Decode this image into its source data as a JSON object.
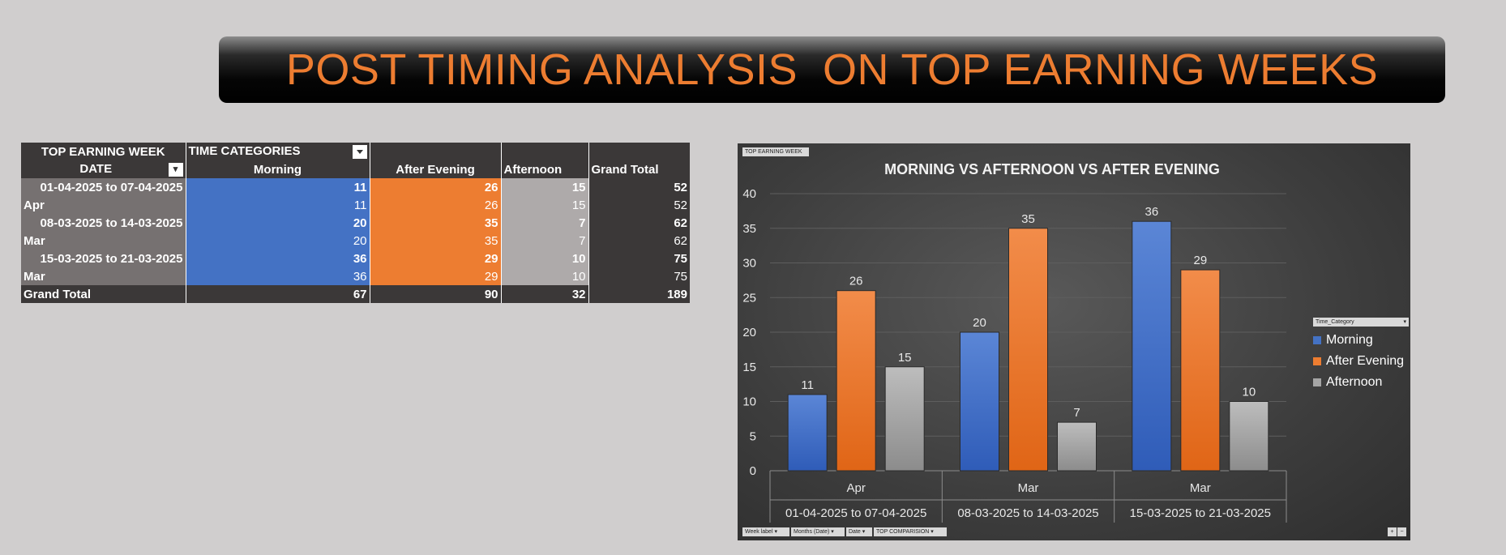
{
  "banner": {
    "title": "POST TIMING ANALYSIS  ON TOP EARNING WEEKS"
  },
  "pivot": {
    "header1": {
      "col0": "TOP EARNING WEEK",
      "col1": "TIME CATEGORIES"
    },
    "header2": {
      "col0": "DATE",
      "col1": "Morning",
      "col2": "After Evening",
      "col3": "Afternoon",
      "col4": "Grand Total"
    },
    "rows": [
      {
        "label": "01-04-2025 to 07-04-2025",
        "morning": "11",
        "after_evening": "26",
        "afternoon": "15",
        "total": "52"
      },
      {
        "label": "Apr",
        "morning": "11",
        "after_evening": "26",
        "afternoon": "15",
        "total": "52"
      },
      {
        "label": "08-03-2025 to 14-03-2025",
        "morning": "20",
        "after_evening": "35",
        "afternoon": "7",
        "total": "62"
      },
      {
        "label": "Mar",
        "morning": "20",
        "after_evening": "35",
        "afternoon": "7",
        "total": "62"
      },
      {
        "label": "15-03-2025 to 21-03-2025",
        "morning": "36",
        "after_evening": "29",
        "afternoon": "10",
        "total": "75"
      },
      {
        "label": "Mar",
        "morning": "36",
        "after_evening": "29",
        "afternoon": "10",
        "total": "75"
      }
    ],
    "grand_total": {
      "label": "Grand Total",
      "morning": "67",
      "after_evening": "90",
      "afternoon": "32",
      "total": "189"
    }
  },
  "chart_panel": {
    "field_button_top": "TOP EARNING WEEK",
    "legend_field": "Time_Category",
    "bottom_fields": [
      "Week label",
      "Months (Date)",
      "Date",
      "TOP COMPARISION"
    ]
  },
  "chart_data": {
    "type": "bar",
    "title": "MORNING VS AFTERNOON VS AFTER EVENING",
    "categories": [
      "Apr",
      "Mar",
      "Mar"
    ],
    "category_groups": [
      "01-04-2025 to 07-04-2025",
      "08-03-2025 to 14-03-2025",
      "15-03-2025 to 21-03-2025"
    ],
    "series": [
      {
        "name": "Morning",
        "values": [
          11,
          20,
          36
        ],
        "color": "#4472c4"
      },
      {
        "name": "After Evening",
        "values": [
          26,
          35,
          29
        ],
        "color": "#ed7d31"
      },
      {
        "name": "Afternoon",
        "values": [
          15,
          7,
          10
        ],
        "color": "#a5a5a5"
      }
    ],
    "ylim": [
      0,
      40
    ],
    "yticks": [
      0,
      5,
      10,
      15,
      20,
      25,
      30,
      35,
      40
    ],
    "grid": true,
    "legend": "right",
    "data_labels": true
  }
}
